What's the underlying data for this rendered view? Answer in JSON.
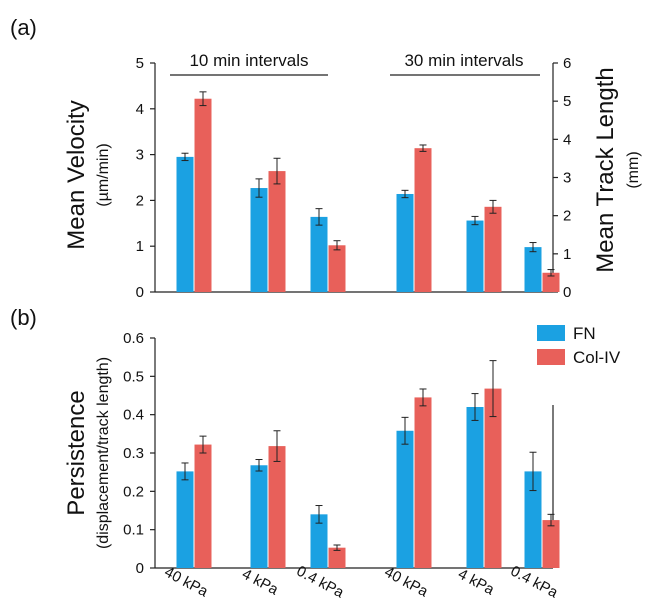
{
  "panels": {
    "a": "(a)",
    "b": "(b)"
  },
  "colors": {
    "FN": "#1ba1e2",
    "Col-IV": "#e8605a"
  },
  "legend": {
    "items": [
      "FN",
      "Col-IV"
    ]
  },
  "chart_data": [
    {
      "type": "bar",
      "panel": "(a)",
      "groups": [
        "10 min intervals",
        "30 min intervals"
      ],
      "categories": [
        "40 kPa",
        "4 kPa",
        "0.4 kPa",
        "40 kPa",
        "4 kPa",
        "0.4 kPa"
      ],
      "ylabel": "Mean Velocity",
      "ylabel_unit": "(µm/min)",
      "ylim": [
        0,
        5
      ],
      "yticks": [
        "0",
        "1",
        "2",
        "3",
        "4",
        "5"
      ],
      "y2label": "Mean Track Length",
      "y2label_unit": "(mm)",
      "y2lim": [
        0,
        6
      ],
      "y2ticks": [
        "0",
        "1",
        "2",
        "3",
        "4",
        "5",
        "6"
      ],
      "series": [
        {
          "name": "FN",
          "values": [
            2.95,
            2.27,
            1.64,
            2.14,
            1.56,
            0.98
          ],
          "errors": [
            0.08,
            0.2,
            0.18,
            0.08,
            0.09,
            0.1
          ]
        },
        {
          "name": "Col-IV",
          "values": [
            4.22,
            2.64,
            1.02,
            3.14,
            1.86,
            0.42
          ],
          "errors": [
            0.15,
            0.28,
            0.1,
            0.07,
            0.14,
            0.07
          ]
        }
      ]
    },
    {
      "type": "bar",
      "panel": "(b)",
      "categories": [
        "40 kPa",
        "4 kPa",
        "0.4 kPa",
        "40 kPa",
        "4 kPa",
        "0.4 kPa"
      ],
      "ylabel": "Persistence",
      "ylabel_unit": "(displacement/track length)",
      "ylim": [
        0,
        0.6
      ],
      "yticks": [
        "0",
        "0.1",
        "0.2",
        "0.3",
        "0.4",
        "0.5",
        "0.6"
      ],
      "series": [
        {
          "name": "FN",
          "values": [
            0.252,
            0.268,
            0.14,
            0.358,
            0.42,
            0.252
          ],
          "errors": [
            0.022,
            0.015,
            0.023,
            0.035,
            0.035,
            0.05
          ]
        },
        {
          "name": "Col-IV",
          "values": [
            0.322,
            0.318,
            0.053,
            0.445,
            0.468,
            0.125
          ],
          "errors": [
            0.022,
            0.04,
            0.007,
            0.022,
            0.073,
            0.015
          ]
        }
      ]
    }
  ]
}
